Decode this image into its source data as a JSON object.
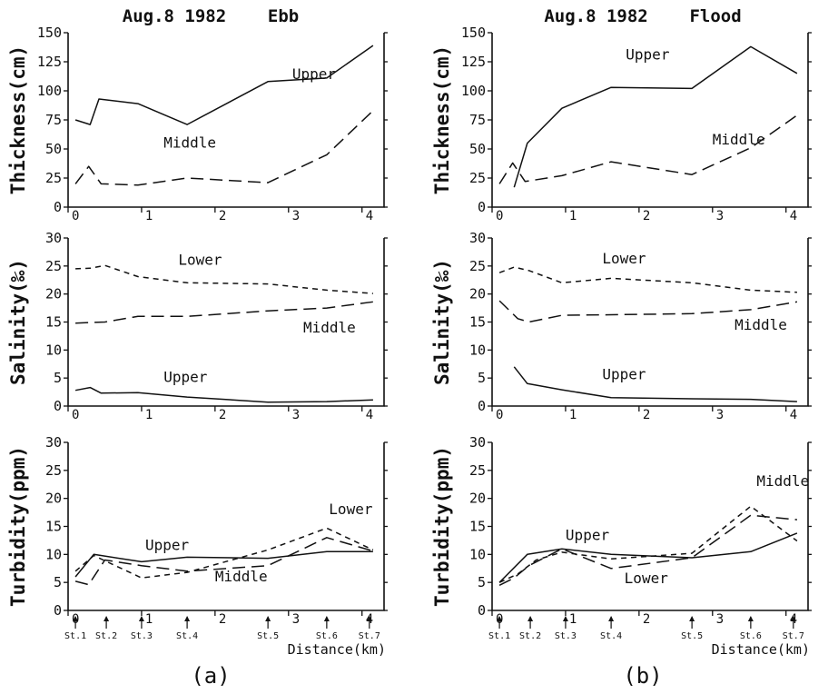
{
  "columns": [
    {
      "title": "Aug.8 1982    Ebb",
      "caption": "(a)"
    },
    {
      "title": "Aug.8 1982    Flood",
      "caption": "(b)"
    }
  ],
  "xaxis": {
    "label": "Distance(km)",
    "ticks": [
      0,
      1,
      2,
      3,
      4
    ],
    "range": [
      0,
      4.3
    ]
  },
  "stations": [
    {
      "label": "St.1",
      "x": 0.1
    },
    {
      "label": "St.2",
      "x": 0.52
    },
    {
      "label": "St.3",
      "x": 1.0
    },
    {
      "label": "St.4",
      "x": 1.62
    },
    {
      "label": "St.5",
      "x": 2.72
    },
    {
      "label": "St.6",
      "x": 3.52
    },
    {
      "label": "St.7",
      "x": 4.1
    }
  ],
  "colors": {
    "ink": "#111111",
    "background": "#ffffff"
  },
  "chart_data": [
    {
      "type": "line",
      "panel": "a-thickness",
      "title": "Aug.8 1982    Ebb",
      "xlabel": "",
      "ylabel": "Thickness(cm)",
      "xlim": [
        0,
        4.3
      ],
      "ylim": [
        0,
        150
      ],
      "yticks": [
        0,
        25,
        50,
        75,
        100,
        125,
        150
      ],
      "series": [
        {
          "name": "Upper",
          "style": "solid",
          "points": [
            [
              0.1,
              75
            ],
            [
              0.3,
              71
            ],
            [
              0.42,
              93
            ],
            [
              0.95,
              89
            ],
            [
              1.62,
              71
            ],
            [
              2.72,
              108
            ],
            [
              3.52,
              111
            ],
            [
              4.15,
              139
            ]
          ]
        },
        {
          "name": "Middle",
          "style": "longdash",
          "points": [
            [
              0.1,
              20
            ],
            [
              0.28,
              35
            ],
            [
              0.45,
              20
            ],
            [
              0.95,
              19
            ],
            [
              1.62,
              25
            ],
            [
              2.72,
              21
            ],
            [
              3.52,
              45
            ],
            [
              4.15,
              83
            ]
          ]
        }
      ],
      "labels": [
        {
          "text": "Upper",
          "x": 3.05,
          "y": 110
        },
        {
          "text": "Middle",
          "x": 1.3,
          "y": 51
        }
      ]
    },
    {
      "type": "line",
      "panel": "a-salinity",
      "xlabel": "",
      "ylabel": "Salinity(‰)",
      "xlim": [
        0,
        4.3
      ],
      "ylim": [
        0,
        30
      ],
      "yticks": [
        0,
        5,
        10,
        15,
        20,
        25,
        30
      ],
      "series": [
        {
          "name": "Lower",
          "style": "shortdash",
          "points": [
            [
              0.1,
              24.5
            ],
            [
              0.3,
              24.6
            ],
            [
              0.5,
              25.1
            ],
            [
              0.95,
              23.1
            ],
            [
              1.62,
              22
            ],
            [
              2.72,
              21.8
            ],
            [
              3.52,
              20.7
            ],
            [
              4.15,
              20.1
            ]
          ]
        },
        {
          "name": "Middle",
          "style": "longdash",
          "points": [
            [
              0.1,
              14.8
            ],
            [
              0.5,
              15
            ],
            [
              0.95,
              16
            ],
            [
              1.62,
              16
            ],
            [
              2.72,
              17
            ],
            [
              3.52,
              17.5
            ],
            [
              4.15,
              18.6
            ]
          ]
        },
        {
          "name": "Upper",
          "style": "solid",
          "points": [
            [
              0.1,
              2.8
            ],
            [
              0.3,
              3.3
            ],
            [
              0.45,
              2.3
            ],
            [
              0.95,
              2.4
            ],
            [
              1.62,
              1.6
            ],
            [
              2.72,
              0.7
            ],
            [
              3.52,
              0.8
            ],
            [
              4.15,
              1.1
            ]
          ]
        }
      ],
      "labels": [
        {
          "text": "Lower",
          "x": 1.5,
          "y": 25.2
        },
        {
          "text": "Middle",
          "x": 3.2,
          "y": 13.1
        },
        {
          "text": "Upper",
          "x": 1.3,
          "y": 4.3
        }
      ]
    },
    {
      "type": "line",
      "panel": "a-turbidity",
      "xlabel": "Distance(km)",
      "ylabel": "Turbidity(ppm)",
      "xlim": [
        0,
        4.3
      ],
      "ylim": [
        0,
        30
      ],
      "yticks": [
        0,
        5,
        10,
        15,
        20,
        25,
        30
      ],
      "series": [
        {
          "name": "Upper",
          "style": "solid",
          "points": [
            [
              0.1,
              6
            ],
            [
              0.35,
              10
            ],
            [
              1.0,
              8.7
            ],
            [
              1.62,
              9.5
            ],
            [
              2.72,
              9.3
            ],
            [
              3.52,
              10.5
            ],
            [
              4.15,
              10.5
            ]
          ]
        },
        {
          "name": "Middle",
          "style": "longdash",
          "points": [
            [
              0.1,
              5.2
            ],
            [
              0.28,
              4.6
            ],
            [
              0.5,
              9
            ],
            [
              1.0,
              8
            ],
            [
              1.62,
              7
            ],
            [
              2.72,
              8
            ],
            [
              3.52,
              13
            ],
            [
              4.15,
              10.6
            ]
          ]
        },
        {
          "name": "Lower",
          "style": "shortdash",
          "points": [
            [
              0.1,
              7
            ],
            [
              0.35,
              9.8
            ],
            [
              1.0,
              5.8
            ],
            [
              1.62,
              6.8
            ],
            [
              2.72,
              10.8
            ],
            [
              3.52,
              14.7
            ],
            [
              4.15,
              10.8
            ]
          ]
        }
      ],
      "labels": [
        {
          "text": "Upper",
          "x": 1.05,
          "y": 10.8
        },
        {
          "text": "Middle",
          "x": 2.0,
          "y": 5.2
        },
        {
          "text": "Lower",
          "x": 3.55,
          "y": 17.2
        }
      ]
    },
    {
      "type": "line",
      "panel": "b-thickness",
      "title": "Aug.8 1982    Flood",
      "xlabel": "",
      "ylabel": "Thickness(cm)",
      "xlim": [
        0,
        4.3
      ],
      "ylim": [
        0,
        150
      ],
      "yticks": [
        0,
        25,
        50,
        75,
        100,
        125,
        150
      ],
      "series": [
        {
          "name": "Upper",
          "style": "solid",
          "points": [
            [
              0.3,
              17
            ],
            [
              0.48,
              55
            ],
            [
              0.95,
              85
            ],
            [
              1.62,
              103
            ],
            [
              2.72,
              102
            ],
            [
              3.52,
              138
            ],
            [
              4.15,
              115
            ]
          ]
        },
        {
          "name": "Middle",
          "style": "longdash",
          "points": [
            [
              0.1,
              20
            ],
            [
              0.28,
              38
            ],
            [
              0.45,
              22
            ],
            [
              0.95,
              27
            ],
            [
              1.62,
              39
            ],
            [
              2.72,
              28
            ],
            [
              3.52,
              51
            ],
            [
              4.15,
              79
            ]
          ]
        }
      ],
      "labels": [
        {
          "text": "Upper",
          "x": 1.82,
          "y": 127
        },
        {
          "text": "Middle",
          "x": 3.0,
          "y": 54
        }
      ]
    },
    {
      "type": "line",
      "panel": "b-salinity",
      "xlabel": "",
      "ylabel": "Salinity(‰)",
      "xlim": [
        0,
        4.3
      ],
      "ylim": [
        0,
        30
      ],
      "yticks": [
        0,
        5,
        10,
        15,
        20,
        25,
        30
      ],
      "series": [
        {
          "name": "Lower",
          "style": "shortdash",
          "points": [
            [
              0.1,
              23.8
            ],
            [
              0.3,
              24.8
            ],
            [
              0.5,
              24.2
            ],
            [
              0.95,
              22
            ],
            [
              1.62,
              22.8
            ],
            [
              2.72,
              22
            ],
            [
              3.52,
              20.7
            ],
            [
              4.15,
              20.3
            ]
          ]
        },
        {
          "name": "Middle",
          "style": "longdash",
          "points": [
            [
              0.1,
              18.8
            ],
            [
              0.35,
              15.6
            ],
            [
              0.5,
              15
            ],
            [
              0.95,
              16.2
            ],
            [
              1.62,
              16.3
            ],
            [
              2.72,
              16.5
            ],
            [
              3.52,
              17.2
            ],
            [
              4.15,
              18.6
            ]
          ]
        },
        {
          "name": "Upper",
          "style": "solid",
          "points": [
            [
              0.3,
              7
            ],
            [
              0.48,
              4
            ],
            [
              0.95,
              2.9
            ],
            [
              1.62,
              1.5
            ],
            [
              2.72,
              1.3
            ],
            [
              3.52,
              1.2
            ],
            [
              4.15,
              0.8
            ]
          ]
        }
      ],
      "labels": [
        {
          "text": "Lower",
          "x": 1.5,
          "y": 25.5
        },
        {
          "text": "Middle",
          "x": 3.3,
          "y": 13.6
        },
        {
          "text": "Upper",
          "x": 1.5,
          "y": 4.8
        }
      ]
    },
    {
      "type": "line",
      "panel": "b-turbidity",
      "xlabel": "Distance(km)",
      "ylabel": "Turbidity(ppm)",
      "xlim": [
        0,
        4.3
      ],
      "ylim": [
        0,
        30
      ],
      "yticks": [
        0,
        5,
        10,
        15,
        20,
        25,
        30
      ],
      "series": [
        {
          "name": "Upper",
          "style": "solid",
          "points": [
            [
              0.1,
              5
            ],
            [
              0.48,
              10
            ],
            [
              0.95,
              11
            ],
            [
              1.62,
              10
            ],
            [
              2.72,
              9.4
            ],
            [
              3.52,
              10.5
            ],
            [
              4.15,
              13.8
            ]
          ]
        },
        {
          "name": "Middle",
          "style": "longdash",
          "points": [
            [
              0.1,
              4.5
            ],
            [
              0.3,
              5.8
            ],
            [
              0.5,
              8
            ],
            [
              0.95,
              11
            ],
            [
              1.62,
              7.5
            ],
            [
              2.72,
              9.4
            ],
            [
              3.52,
              17
            ],
            [
              4.15,
              16.2
            ]
          ]
        },
        {
          "name": "Lower",
          "style": "shortdash",
          "points": [
            [
              0.1,
              5
            ],
            [
              0.35,
              6.5
            ],
            [
              0.6,
              9
            ],
            [
              0.95,
              10.4
            ],
            [
              1.62,
              9.2
            ],
            [
              2.72,
              10.2
            ],
            [
              3.52,
              18.6
            ],
            [
              4.15,
              12.4
            ]
          ]
        }
      ],
      "labels": [
        {
          "text": "Upper",
          "x": 1.0,
          "y": 12.6
        },
        {
          "text": "Lower",
          "x": 1.8,
          "y": 4.9
        },
        {
          "text": "Middle",
          "x": 3.6,
          "y": 22.2
        }
      ]
    }
  ]
}
